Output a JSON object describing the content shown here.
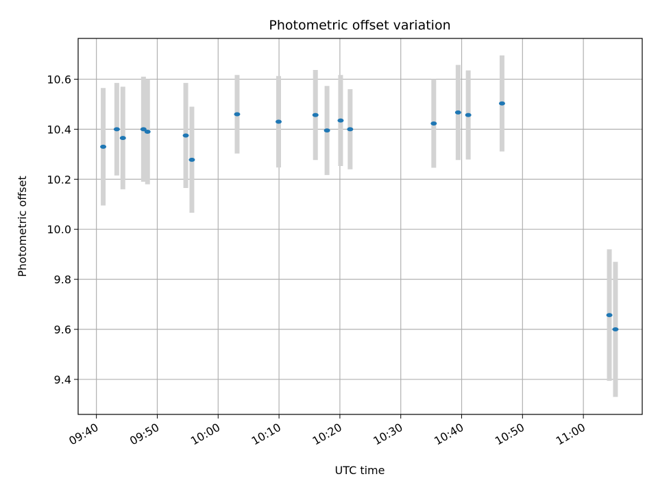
{
  "chart_data": {
    "type": "scatter",
    "title": "Photometric offset variation",
    "xlabel": "UTC time",
    "ylabel": "Photometric offset",
    "xlim": [
      "09:37:00",
      "11:09:40"
    ],
    "ylim": [
      9.26,
      10.763
    ],
    "grid": true,
    "x_ticks": [
      "09:40",
      "09:50",
      "10:00",
      "10:10",
      "10:20",
      "10:30",
      "10:40",
      "10:50",
      "11:00"
    ],
    "y_ticks": [
      "9.4",
      "9.6",
      "9.8",
      "10.0",
      "10.2",
      "10.4",
      "10.6"
    ],
    "series": [
      {
        "marker_color": "#1f77b4",
        "errorbar_color": "#d3d3d3",
        "points": [
          {
            "time": "09:41:07",
            "y": 10.33,
            "err": 0.235
          },
          {
            "time": "09:43:21",
            "y": 10.4,
            "err": 0.185
          },
          {
            "time": "09:44:21",
            "y": 10.365,
            "err": 0.205
          },
          {
            "time": "09:47:44",
            "y": 10.4,
            "err": 0.21
          },
          {
            "time": "09:48:24",
            "y": 10.39,
            "err": 0.21
          },
          {
            "time": "09:54:41",
            "y": 10.375,
            "err": 0.21
          },
          {
            "time": "09:55:41",
            "y": 10.278,
            "err": 0.212
          },
          {
            "time": "10:03:07",
            "y": 10.46,
            "err": 0.157
          },
          {
            "time": "10:09:56",
            "y": 10.43,
            "err": 0.183
          },
          {
            "time": "10:15:59",
            "y": 10.457,
            "err": 0.18
          },
          {
            "time": "10:17:53",
            "y": 10.395,
            "err": 0.178
          },
          {
            "time": "10:20:07",
            "y": 10.435,
            "err": 0.182
          },
          {
            "time": "10:21:41",
            "y": 10.4,
            "err": 0.16
          },
          {
            "time": "10:35:25",
            "y": 10.423,
            "err": 0.177
          },
          {
            "time": "10:39:25",
            "y": 10.467,
            "err": 0.19
          },
          {
            "time": "10:41:05",
            "y": 10.457,
            "err": 0.178
          },
          {
            "time": "10:46:38",
            "y": 10.503,
            "err": 0.192
          },
          {
            "time": "11:04:16",
            "y": 9.657,
            "err": 0.263
          },
          {
            "time": "11:05:16",
            "y": 9.6,
            "err": 0.27
          }
        ]
      }
    ]
  }
}
